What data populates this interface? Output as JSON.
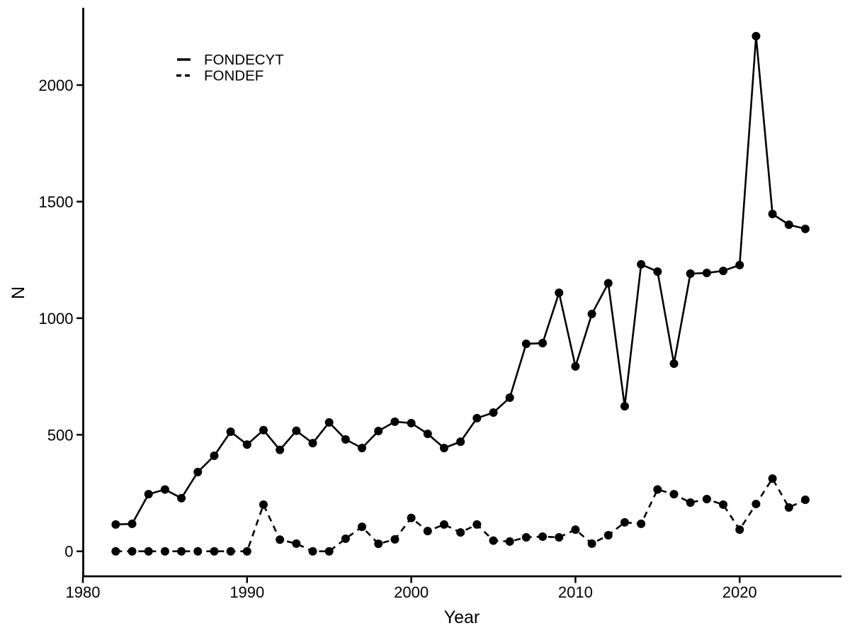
{
  "figure": {
    "background_color": "#ffffff",
    "ink_color": "#000000"
  },
  "chart_data": {
    "type": "line",
    "title": "",
    "xlabel": "Year",
    "ylabel": "N",
    "grid": false,
    "legend_position": "top-left-inside",
    "xlim": [
      1980,
      2026
    ],
    "ylim": [
      -100,
      2330
    ],
    "x_ticks": [
      1980,
      1990,
      2000,
      2010,
      2020
    ],
    "y_ticks": [
      0,
      500,
      1000,
      1500,
      2000
    ],
    "x": [
      1982,
      1983,
      1984,
      1985,
      1986,
      1987,
      1988,
      1989,
      1990,
      1991,
      1992,
      1993,
      1994,
      1995,
      1996,
      1997,
      1998,
      1999,
      2000,
      2001,
      2002,
      2003,
      2004,
      2005,
      2006,
      2007,
      2008,
      2009,
      2010,
      2011,
      2012,
      2013,
      2014,
      2015,
      2016,
      2017,
      2018,
      2019,
      2020,
      2021,
      2022,
      2023,
      2024
    ],
    "series": [
      {
        "name": "FONDECYT",
        "linestyle": "solid",
        "marker": "filled-circle",
        "color": "#000000",
        "values": [
          115,
          118,
          245,
          265,
          228,
          340,
          410,
          513,
          458,
          520,
          435,
          517,
          464,
          553,
          480,
          443,
          516,
          556,
          550,
          504,
          443,
          470,
          571,
          595,
          659,
          890,
          893,
          1109,
          793,
          1018,
          1150,
          622,
          1231,
          1200,
          805,
          1191,
          1194,
          1203,
          1228,
          2210,
          1447,
          1401,
          1383
        ]
      },
      {
        "name": "FONDEF",
        "linestyle": "dashed",
        "marker": "filled-circle",
        "color": "#000000",
        "values": [
          0,
          0,
          0,
          0,
          0,
          0,
          0,
          0,
          0,
          200,
          50,
          33,
          0,
          0,
          54,
          105,
          32,
          51,
          143,
          87,
          115,
          81,
          115,
          46,
          42,
          60,
          63,
          60,
          93,
          33,
          69,
          124,
          118,
          265,
          245,
          209,
          224,
          200,
          93,
          203,
          312,
          188,
          221
        ]
      }
    ]
  }
}
